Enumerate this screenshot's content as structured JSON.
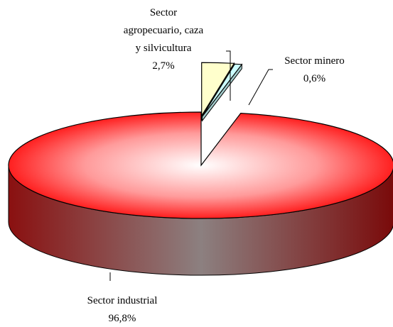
{
  "chart_data": {
    "type": "pie3d",
    "categories": [
      "Sector agropecuario, caza y silvicultura",
      "Sector minero",
      "Sector industrial"
    ],
    "values": [
      2.7,
      0.6,
      96.8
    ],
    "value_labels": [
      "2,7%",
      "0,6%",
      "96,8%"
    ],
    "colors": [
      "#ffffcc",
      "#ccffff",
      "#ff0000"
    ]
  }
}
